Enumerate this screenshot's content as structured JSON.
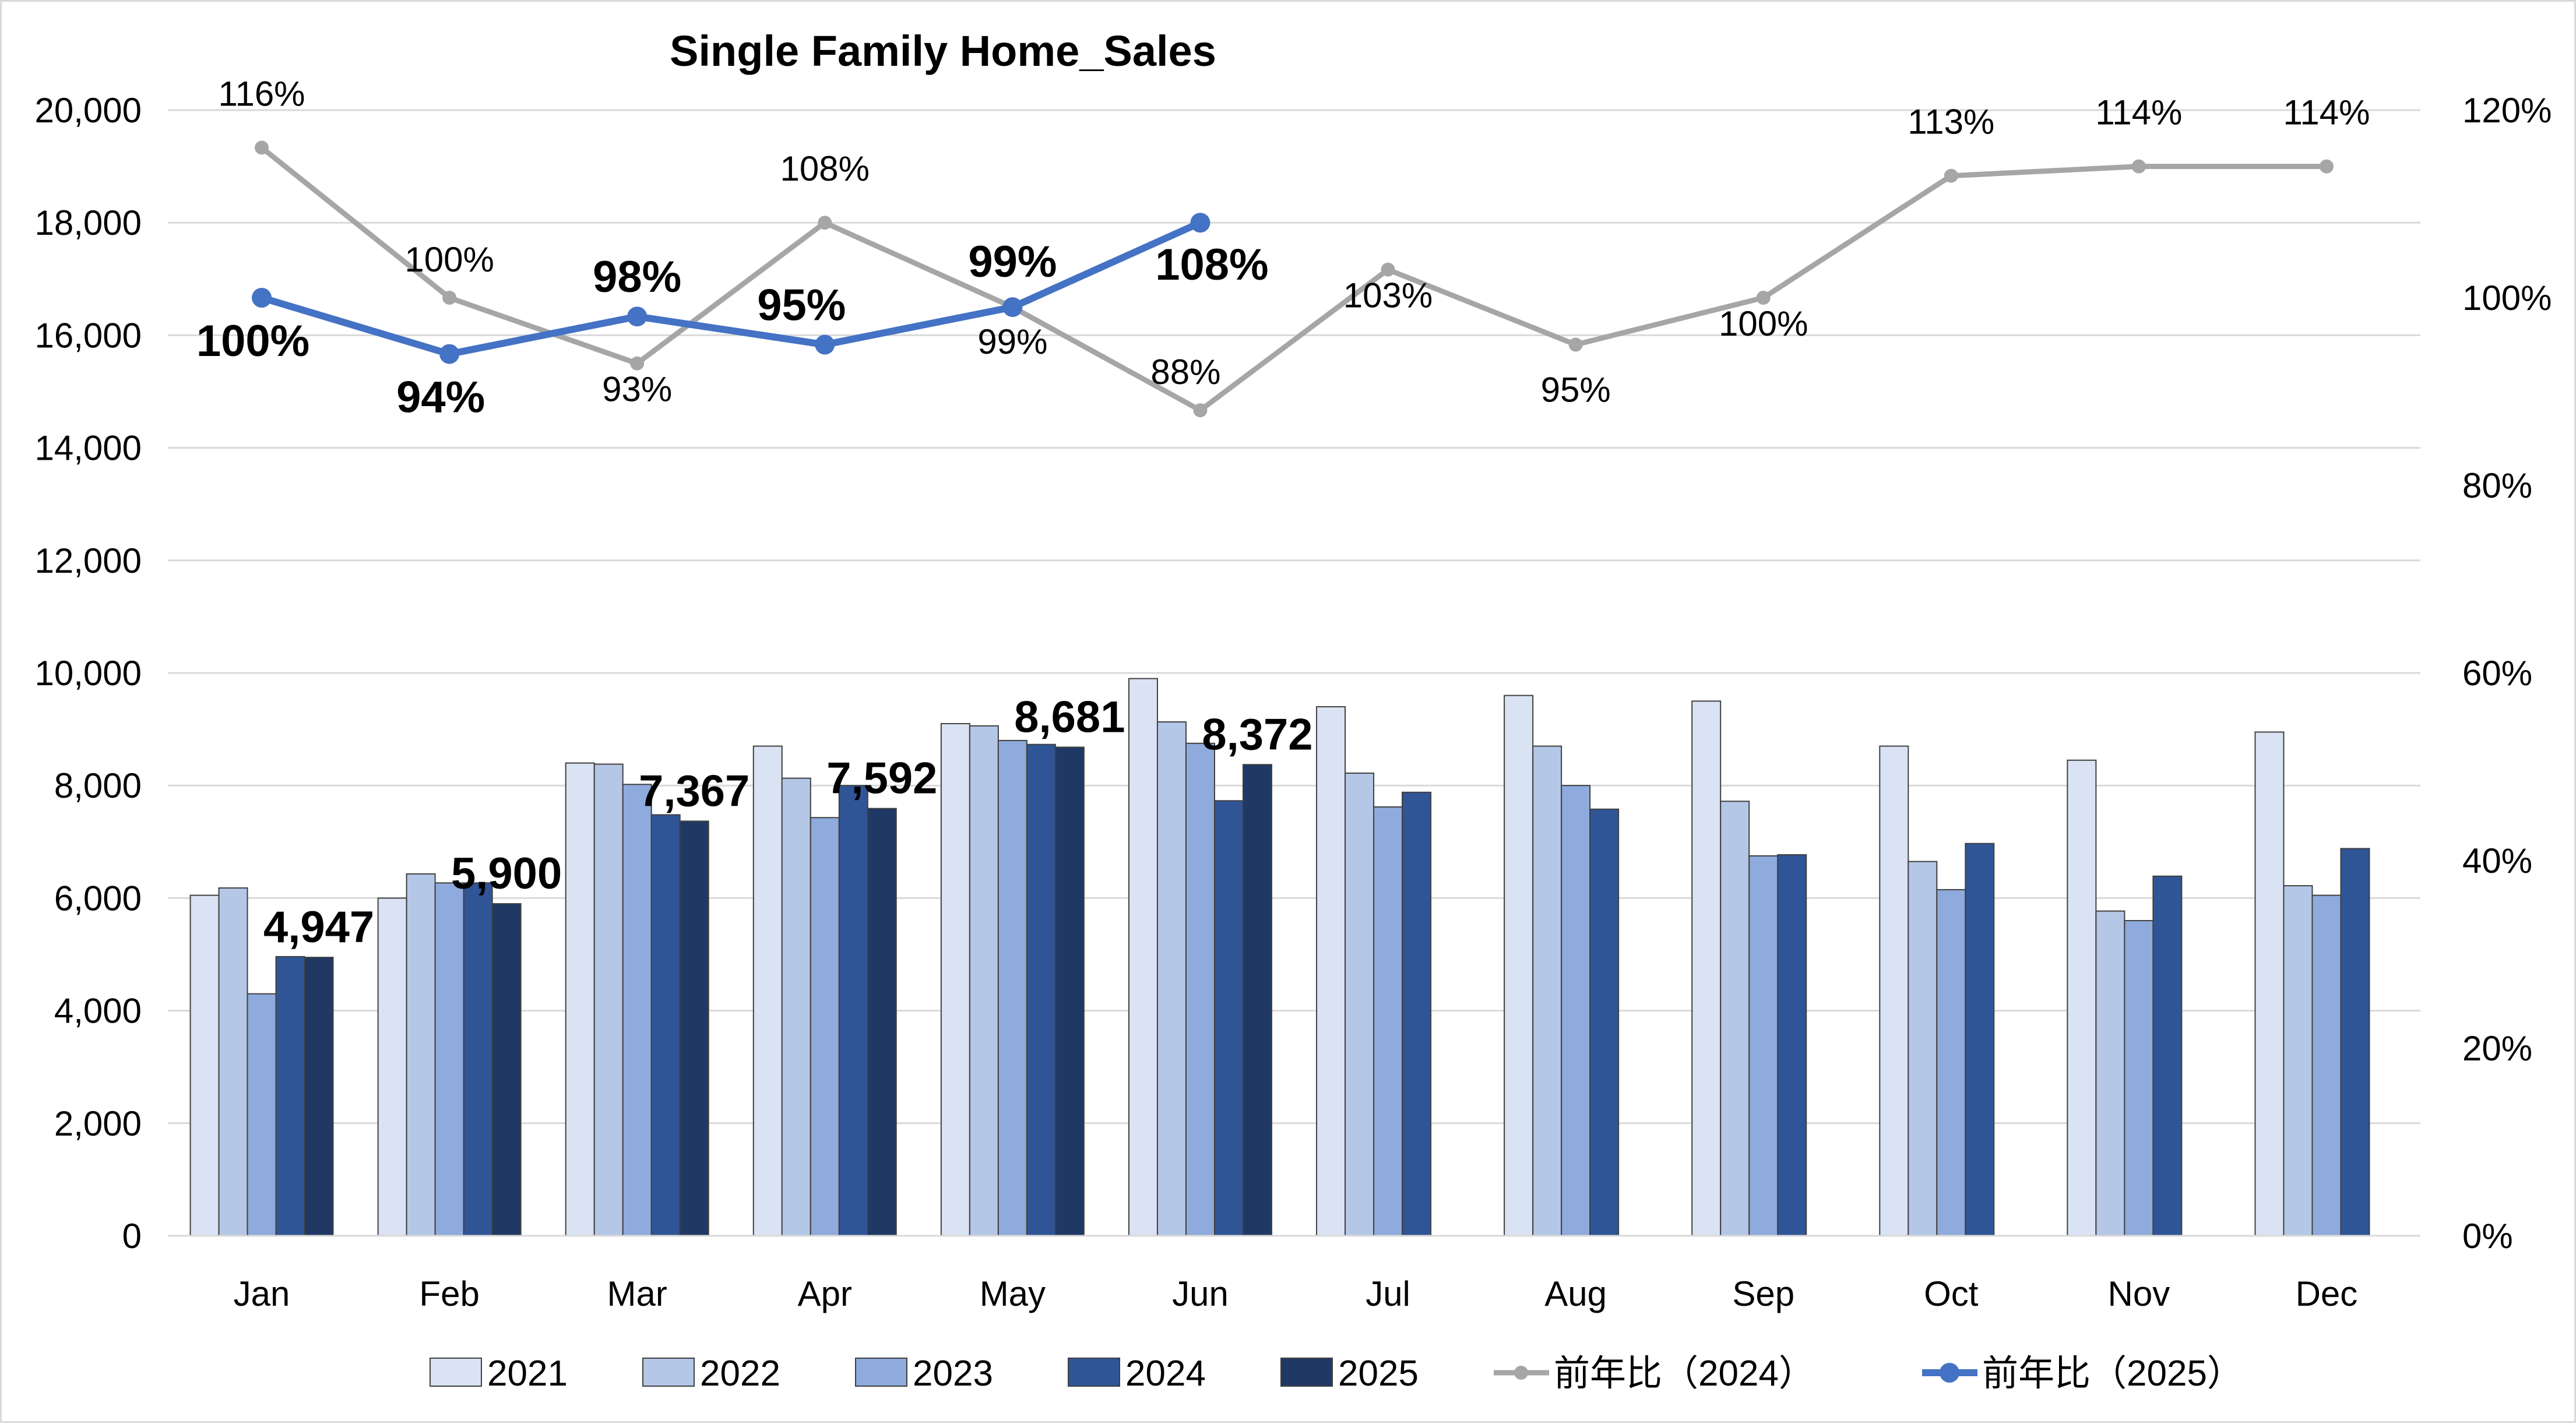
{
  "chart_data": {
    "type": "bar",
    "title": "Single Family Home_Sales",
    "categories": [
      "Jan",
      "Feb",
      "Mar",
      "Apr",
      "May",
      "Jun",
      "Jul",
      "Aug",
      "Sep",
      "Oct",
      "Nov",
      "Dec"
    ],
    "y_left": {
      "min": 0,
      "max": 20000,
      "step": 2000,
      "tick_labels": [
        "0",
        "2,000",
        "4,000",
        "6,000",
        "8,000",
        "10,000",
        "12,000",
        "14,000",
        "16,000",
        "18,000",
        "20,000"
      ]
    },
    "y_right": {
      "min": 0,
      "max": 1.2,
      "step": 0.2,
      "tick_labels": [
        "0%",
        "20%",
        "40%",
        "60%",
        "80%",
        "100%",
        "120%"
      ]
    },
    "grid": true,
    "legend_position": "bottom",
    "bar_series": [
      {
        "name": "2021",
        "color": "#dae3f3",
        "values": [
          6050,
          6000,
          8400,
          8700,
          9100,
          9900,
          9400,
          9600,
          9500,
          8700,
          8450,
          8950
        ]
      },
      {
        "name": "2022",
        "color": "#b4c7e7",
        "values": [
          6180,
          6430,
          8380,
          8130,
          9060,
          9130,
          8220,
          8700,
          7720,
          6650,
          5770,
          6220
        ]
      },
      {
        "name": "2023",
        "color": "#8faadc",
        "values": [
          4300,
          6270,
          8020,
          7430,
          8800,
          8750,
          7620,
          8000,
          6750,
          6150,
          5600,
          6050
        ]
      },
      {
        "name": "2024",
        "color": "#2f5597",
        "values": [
          4960,
          6270,
          7480,
          8000,
          8730,
          7730,
          7880,
          7580,
          6770,
          6970,
          6390,
          6880
        ]
      },
      {
        "name": "2025",
        "color": "#203864",
        "values": [
          4947,
          5900,
          7367,
          7592,
          8681,
          8372,
          null,
          null,
          null,
          null,
          null,
          null
        ]
      }
    ],
    "bar_labels": {
      "series": "2025",
      "texts": [
        "4,947",
        "5,900",
        "7,367",
        "7,592",
        "8,681",
        "8,372"
      ]
    },
    "line_series": [
      {
        "name": "前年比（2024）",
        "color": "#a6a6a6",
        "values": [
          1.16,
          1.0,
          0.93,
          1.08,
          0.99,
          0.88,
          1.03,
          0.95,
          1.0,
          1.13,
          1.14,
          1.14
        ],
        "labels": [
          "116%",
          "100%",
          "93%",
          "108%",
          "99%",
          "88%",
          "103%",
          "95%",
          "100%",
          "113%",
          "114%",
          "114%"
        ]
      },
      {
        "name": "前年比（2025）",
        "color": "#4472c4",
        "values": [
          1.0,
          0.94,
          0.98,
          0.95,
          0.99,
          1.08,
          null,
          null,
          null,
          null,
          null,
          null
        ],
        "labels": [
          "100%",
          "94%",
          "98%",
          "95%",
          "99%",
          "108%"
        ]
      }
    ]
  }
}
